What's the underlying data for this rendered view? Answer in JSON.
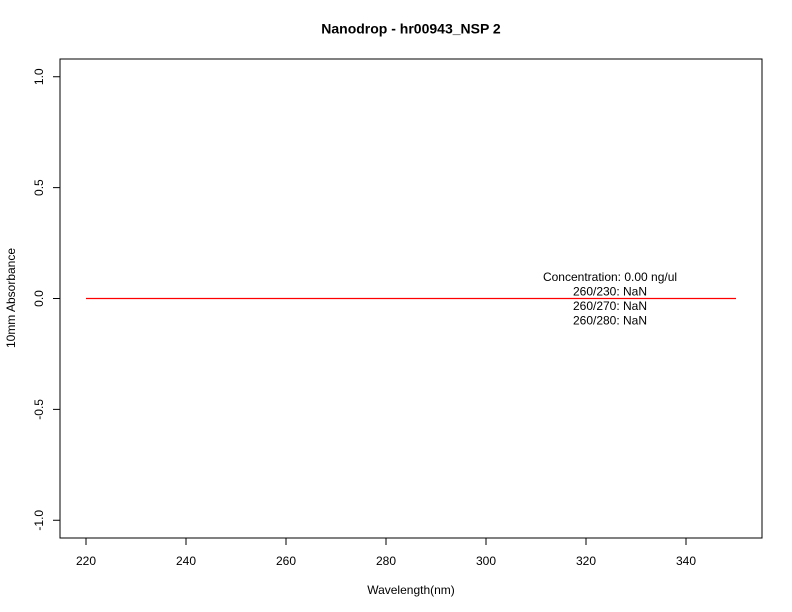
{
  "chart_data": {
    "type": "line",
    "title": "Nanodrop - hr00943_NSP 2",
    "x_label": "Wavelength(nm)",
    "y_label": "10mm Absorbance",
    "x": [
      220,
      350
    ],
    "series": [
      {
        "color": "#ff0000",
        "values": [
          0,
          0
        ]
      }
    ],
    "xlim": [
      214.8,
      355.2
    ],
    "ylim": [
      -1.08,
      1.08
    ],
    "xticks": [
      220,
      240,
      260,
      280,
      300,
      320,
      340
    ],
    "yticks": [
      {
        "value": -1,
        "label": "-1.0"
      },
      -0.5,
      {
        "value": 0,
        "label": "0.0"
      },
      0.5,
      {
        "value": 1,
        "label": "1.0"
      }
    ],
    "annotations": [
      "Concentration: 0.00 ng/ul",
      "260/230: NaN",
      "260/270: NaN",
      "260/280: NaN"
    ]
  }
}
